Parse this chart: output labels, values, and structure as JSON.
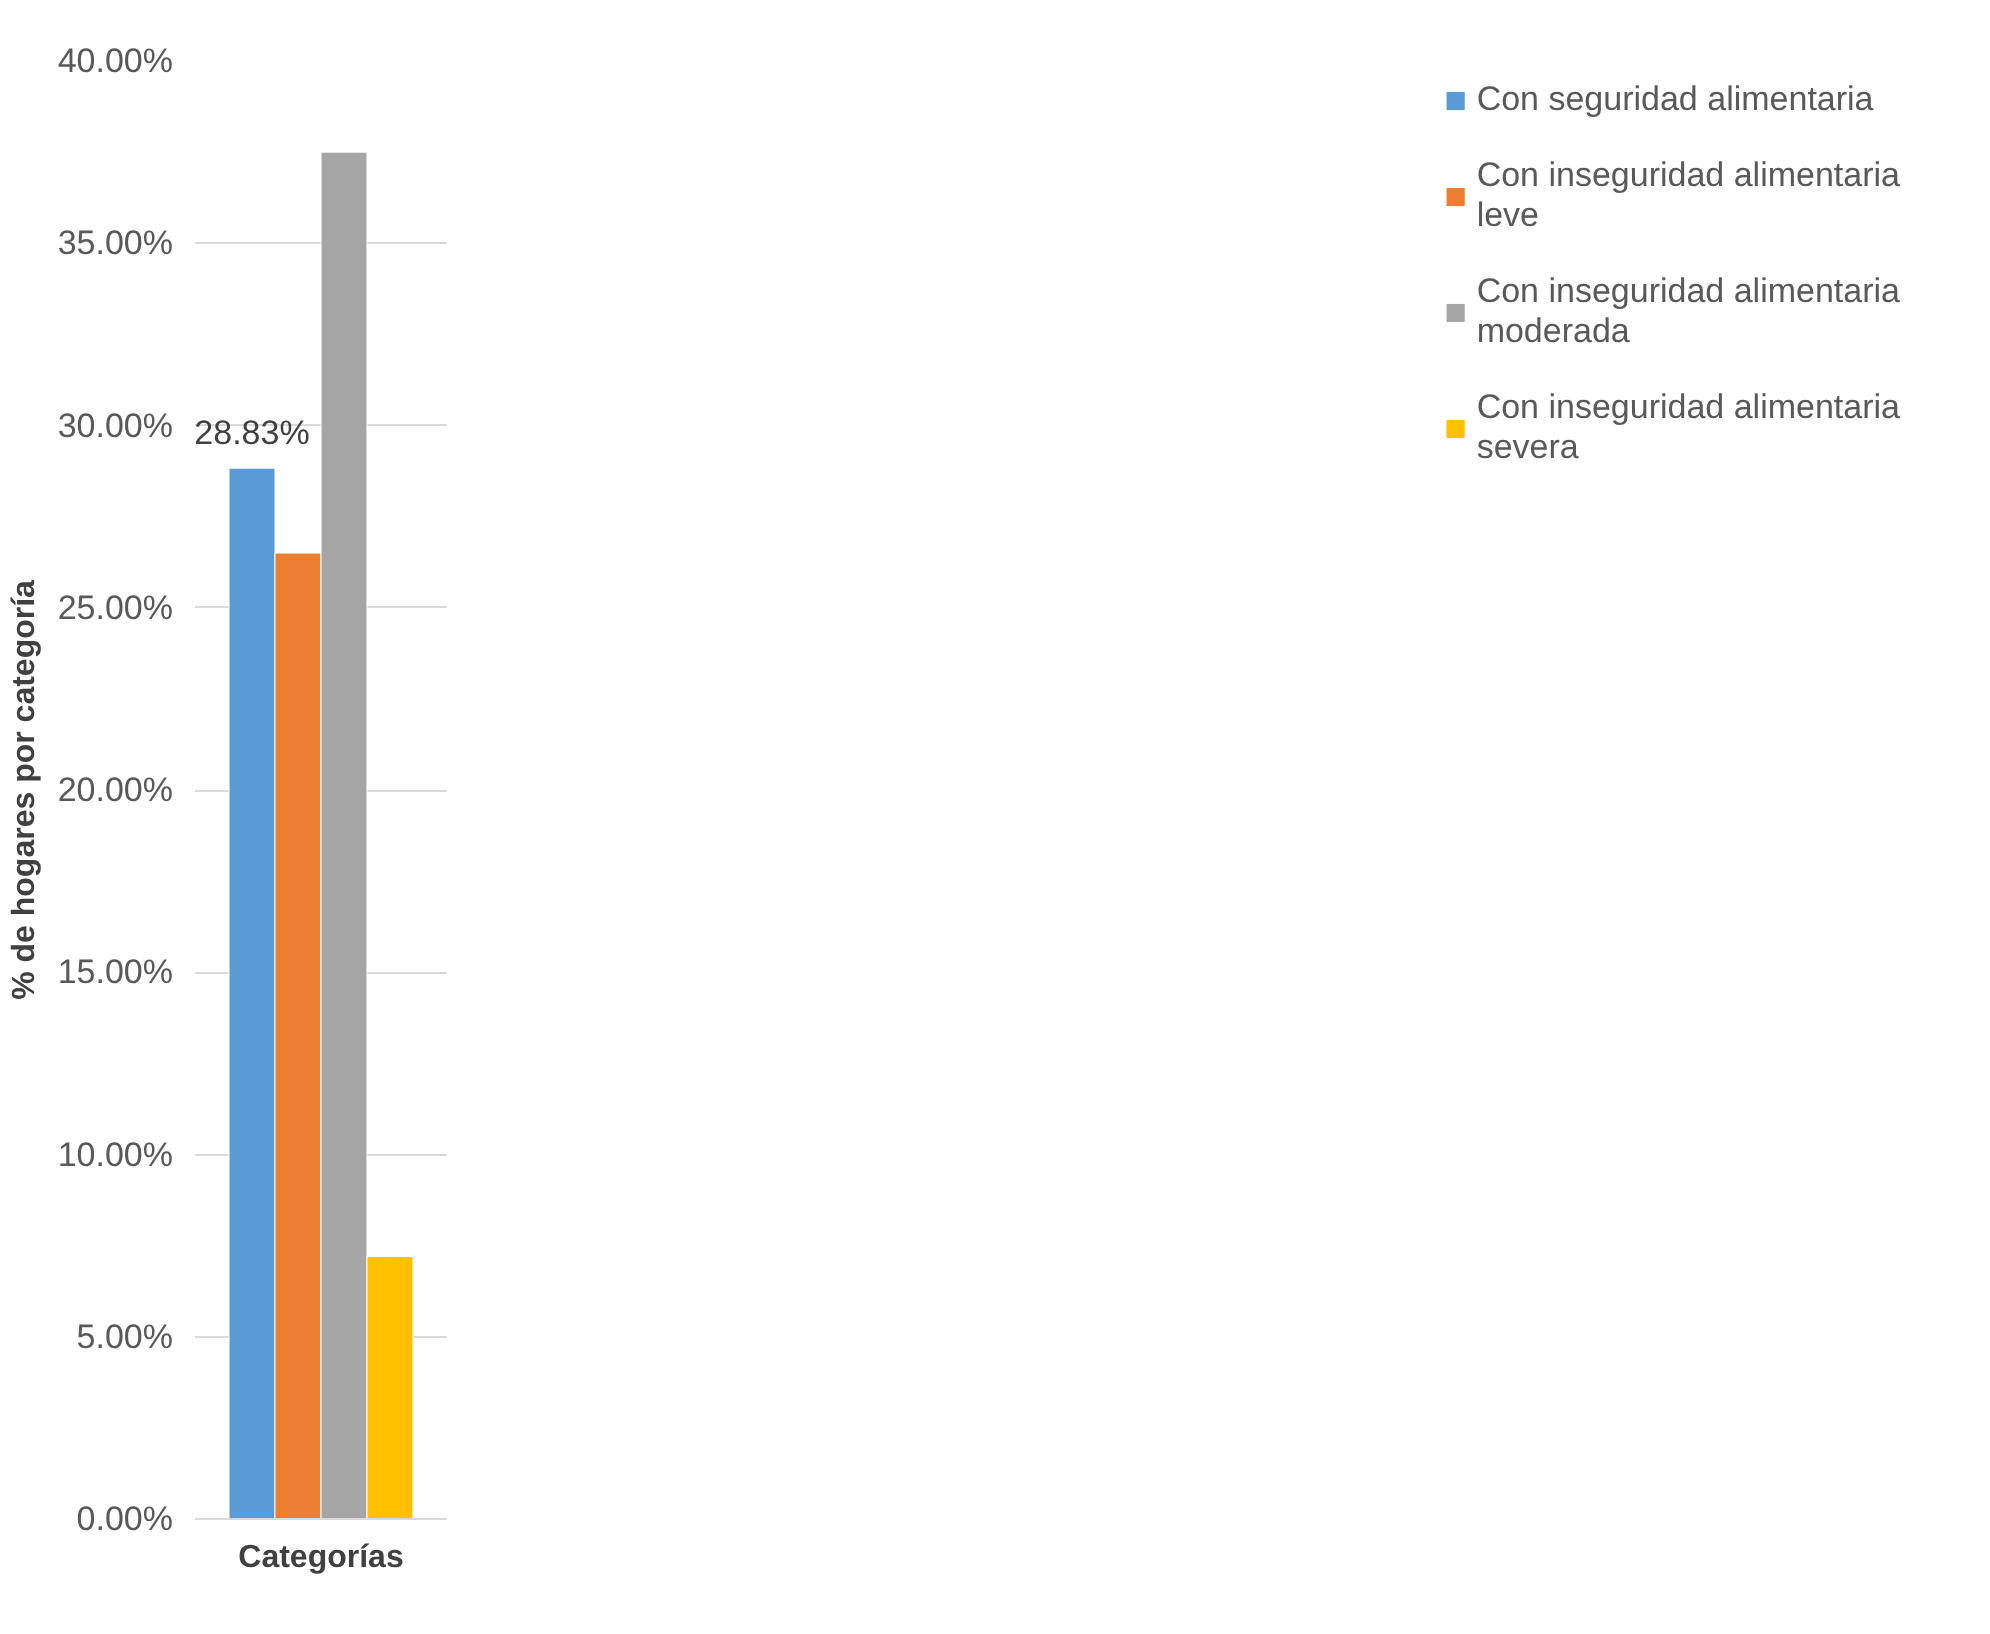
{
  "chart_data": {
    "type": "bar",
    "xlabel": "Categorías",
    "ylabel": "% de hogares por categoría",
    "categories": [
      null
    ],
    "series": [
      {
        "name": "Con seguridad alimentaria",
        "color": "#5b9bd5",
        "values": [
          28.83
        ],
        "value_labels": [
          "28.83%"
        ]
      },
      {
        "name": "Con inseguridad alimentaria leve",
        "color": "#ed7d31",
        "values": [
          26.5
        ]
      },
      {
        "name": "Con inseguridad alimentaria moderada",
        "color": "#a5a5a5",
        "values": [
          37.5
        ]
      },
      {
        "name": "Con inseguridad alimentaria severa",
        "color": "#ffc000",
        "values": [
          7.2
        ]
      }
    ],
    "ylim": [
      0,
      40
    ],
    "yticks": [
      {
        "value": 0,
        "label": "0.00%"
      },
      {
        "value": 5,
        "label": "5.00%"
      },
      {
        "value": 10,
        "label": "10.00%"
      },
      {
        "value": 15,
        "label": "15.00%"
      },
      {
        "value": 20,
        "label": "20.00%"
      },
      {
        "value": 25,
        "label": "25.00%"
      },
      {
        "value": 30,
        "label": "30.00%"
      },
      {
        "value": 35,
        "label": "35.00%"
      },
      {
        "value": 40,
        "label": "40.00%"
      }
    ],
    "grid": "y",
    "legend": "right"
  }
}
